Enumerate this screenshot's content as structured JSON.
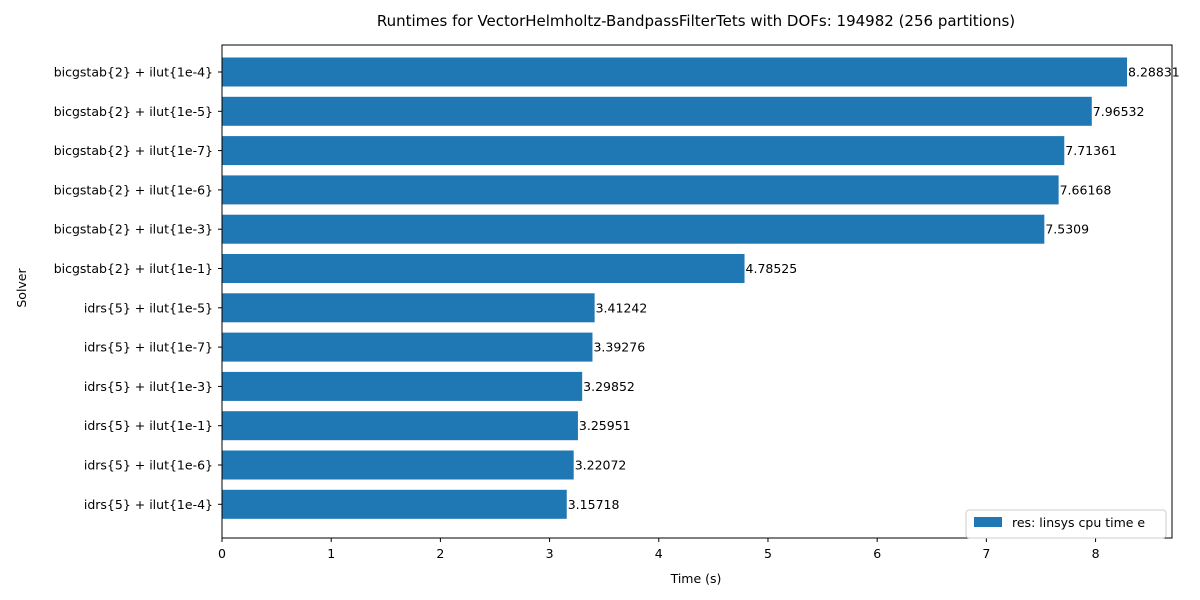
{
  "chart_data": {
    "type": "bar",
    "orientation": "horizontal",
    "title": "Runtimes for VectorHelmholtz-BandpassFilterTets with DOFs: 194982 (256 partitions)",
    "xlabel": "Time (s)",
    "ylabel": "Solver",
    "xlim": [
      0,
      8.7
    ],
    "xticks": [
      0,
      1,
      2,
      3,
      4,
      5,
      6,
      7,
      8
    ],
    "grid": false,
    "legend_position": "lower-right",
    "bar_color": "#1f77b4",
    "categories": [
      "bicgstab{2} + ilut{1e-4}",
      "bicgstab{2} + ilut{1e-5}",
      "bicgstab{2} + ilut{1e-7}",
      "bicgstab{2} + ilut{1e-6}",
      "bicgstab{2} + ilut{1e-3}",
      "bicgstab{2} + ilut{1e-1}",
      "idrs{5} + ilut{1e-5}",
      "idrs{5} + ilut{1e-7}",
      "idrs{5} + ilut{1e-3}",
      "idrs{5} + ilut{1e-1}",
      "idrs{5} + ilut{1e-6}",
      "idrs{5} + ilut{1e-4}"
    ],
    "series": [
      {
        "name": "res: linsys cpu time e",
        "values": [
          8.28831,
          7.96532,
          7.71361,
          7.66168,
          7.5309,
          4.78525,
          3.41242,
          3.39276,
          3.29852,
          3.25951,
          3.22072,
          3.15718
        ],
        "labels": [
          "8.28831",
          "7.96532",
          "7.71361",
          "7.66168",
          "7.5309",
          "4.78525",
          "3.41242",
          "3.39276",
          "3.29852",
          "3.25951",
          "3.22072",
          "3.15718"
        ]
      }
    ]
  }
}
